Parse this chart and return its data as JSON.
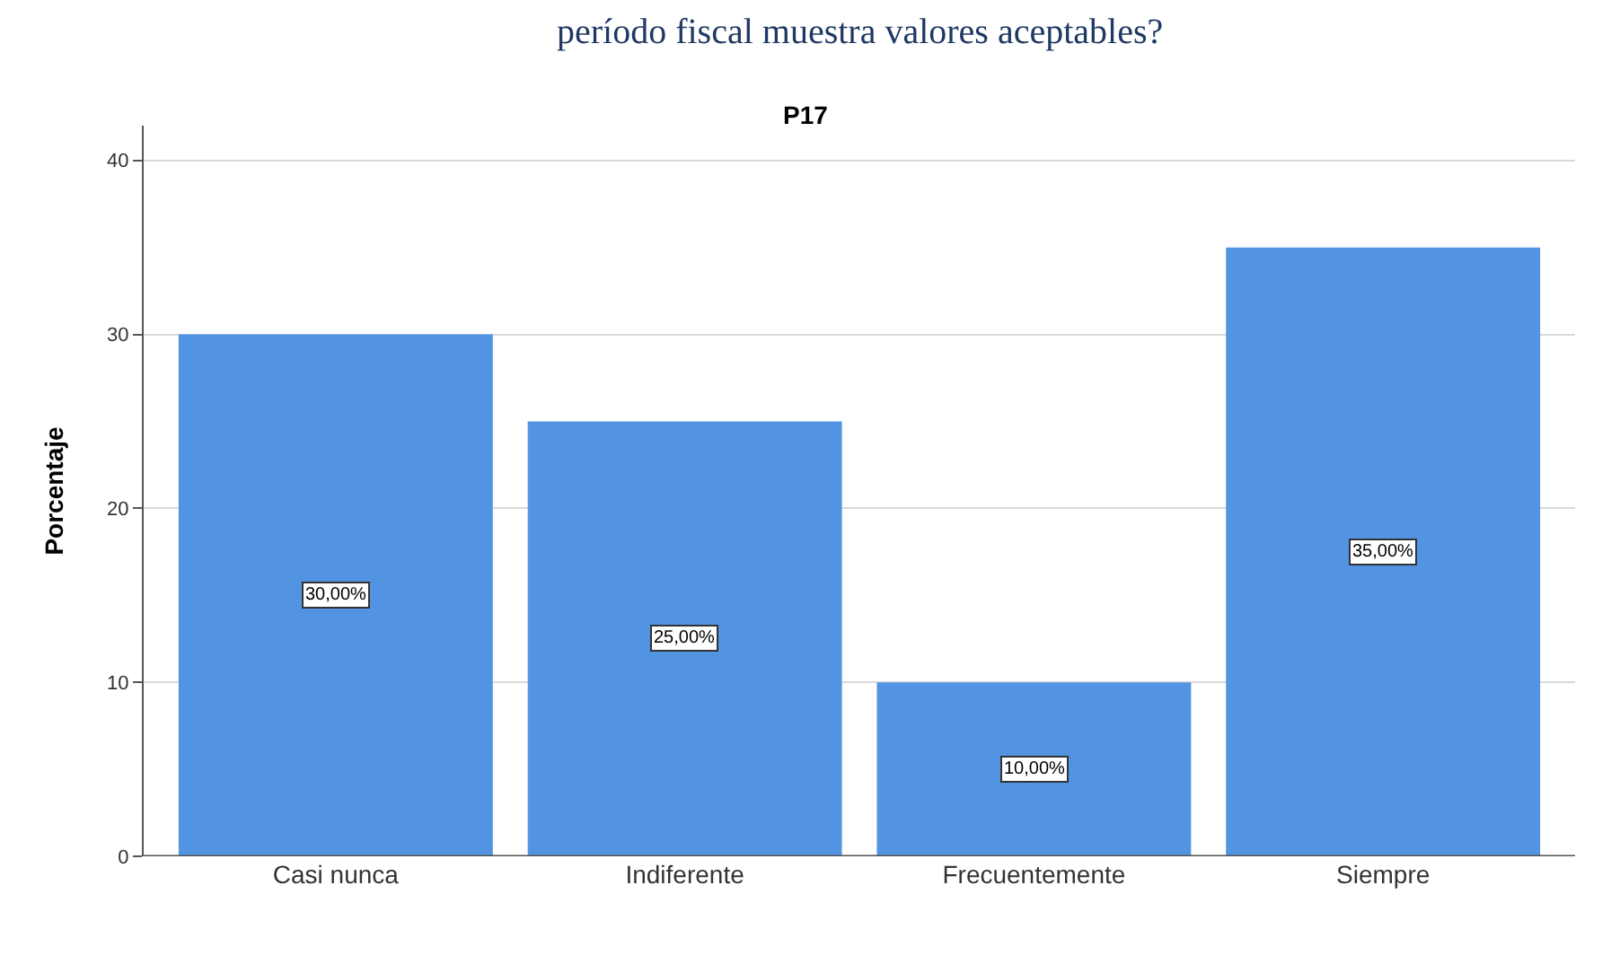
{
  "chart_data": {
    "type": "bar",
    "title": "P17",
    "ylabel": "Porcentaje",
    "annotations": [
      "período fiscal muestra valores aceptables?"
    ],
    "categories": [
      "Casi nunca",
      "Indiferente",
      "Frecuentemente",
      "Siempre"
    ],
    "values": [
      30,
      25,
      10,
      35
    ],
    "color": "#5294e2",
    "value_labels": [
      "30,00%",
      "25,00%",
      "10,00%",
      "35,00%"
    ],
    "ylim": [
      0,
      42
    ],
    "yticks": [
      0,
      10,
      20,
      30,
      40
    ],
    "grid": "y"
  }
}
